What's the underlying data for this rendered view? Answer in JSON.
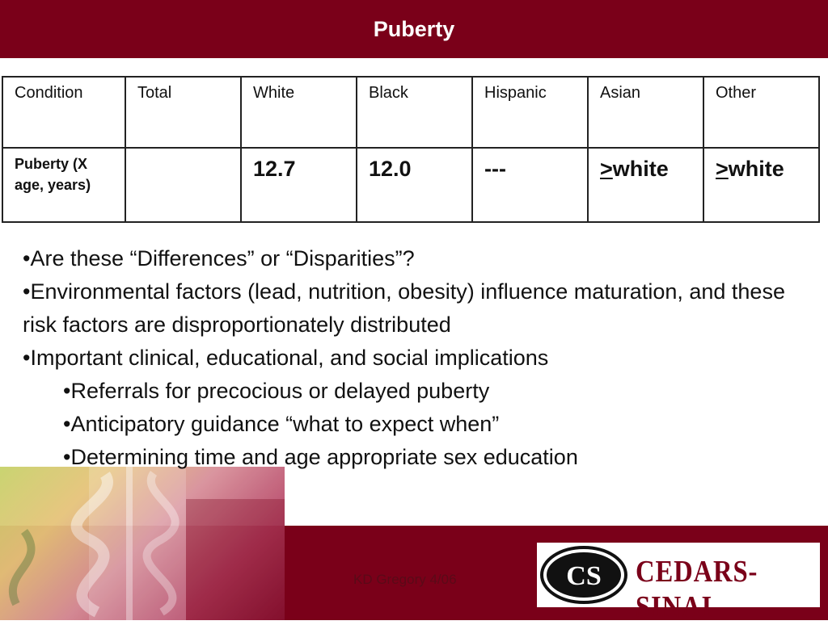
{
  "title": "Puberty",
  "table": {
    "headers": [
      "Condition",
      "Total",
      "White",
      "Black",
      "Hispanic",
      "Asian",
      "Other"
    ],
    "row": {
      "condition": "Puberty (X age, years)",
      "total": "",
      "white": "12.7",
      "black": "12.0",
      "hispanic": "---",
      "asian_sym": ">",
      "asian_text": "white",
      "other_sym": ">",
      "other_text": "white"
    }
  },
  "bullets": [
    "•Are these “Differences” or “Disparities”?",
    "•Environmental factors (lead, nutrition, obesity) influence maturation, and these risk factors are disproportionately distributed",
    "•Important clinical, educational, and social implications"
  ],
  "sub_bullets": [
    "•Referrals for precocious or delayed puberty",
    "•Anticipatory guidance “what to expect when”",
    "•Determining time and age appropriate sex education"
  ],
  "footer": {
    "credit": "KD Gregory 4/06",
    "logo_text": "CEDARS-SINAI",
    "logo_mark": "CS"
  },
  "colors": {
    "brand": "#7a0019"
  }
}
